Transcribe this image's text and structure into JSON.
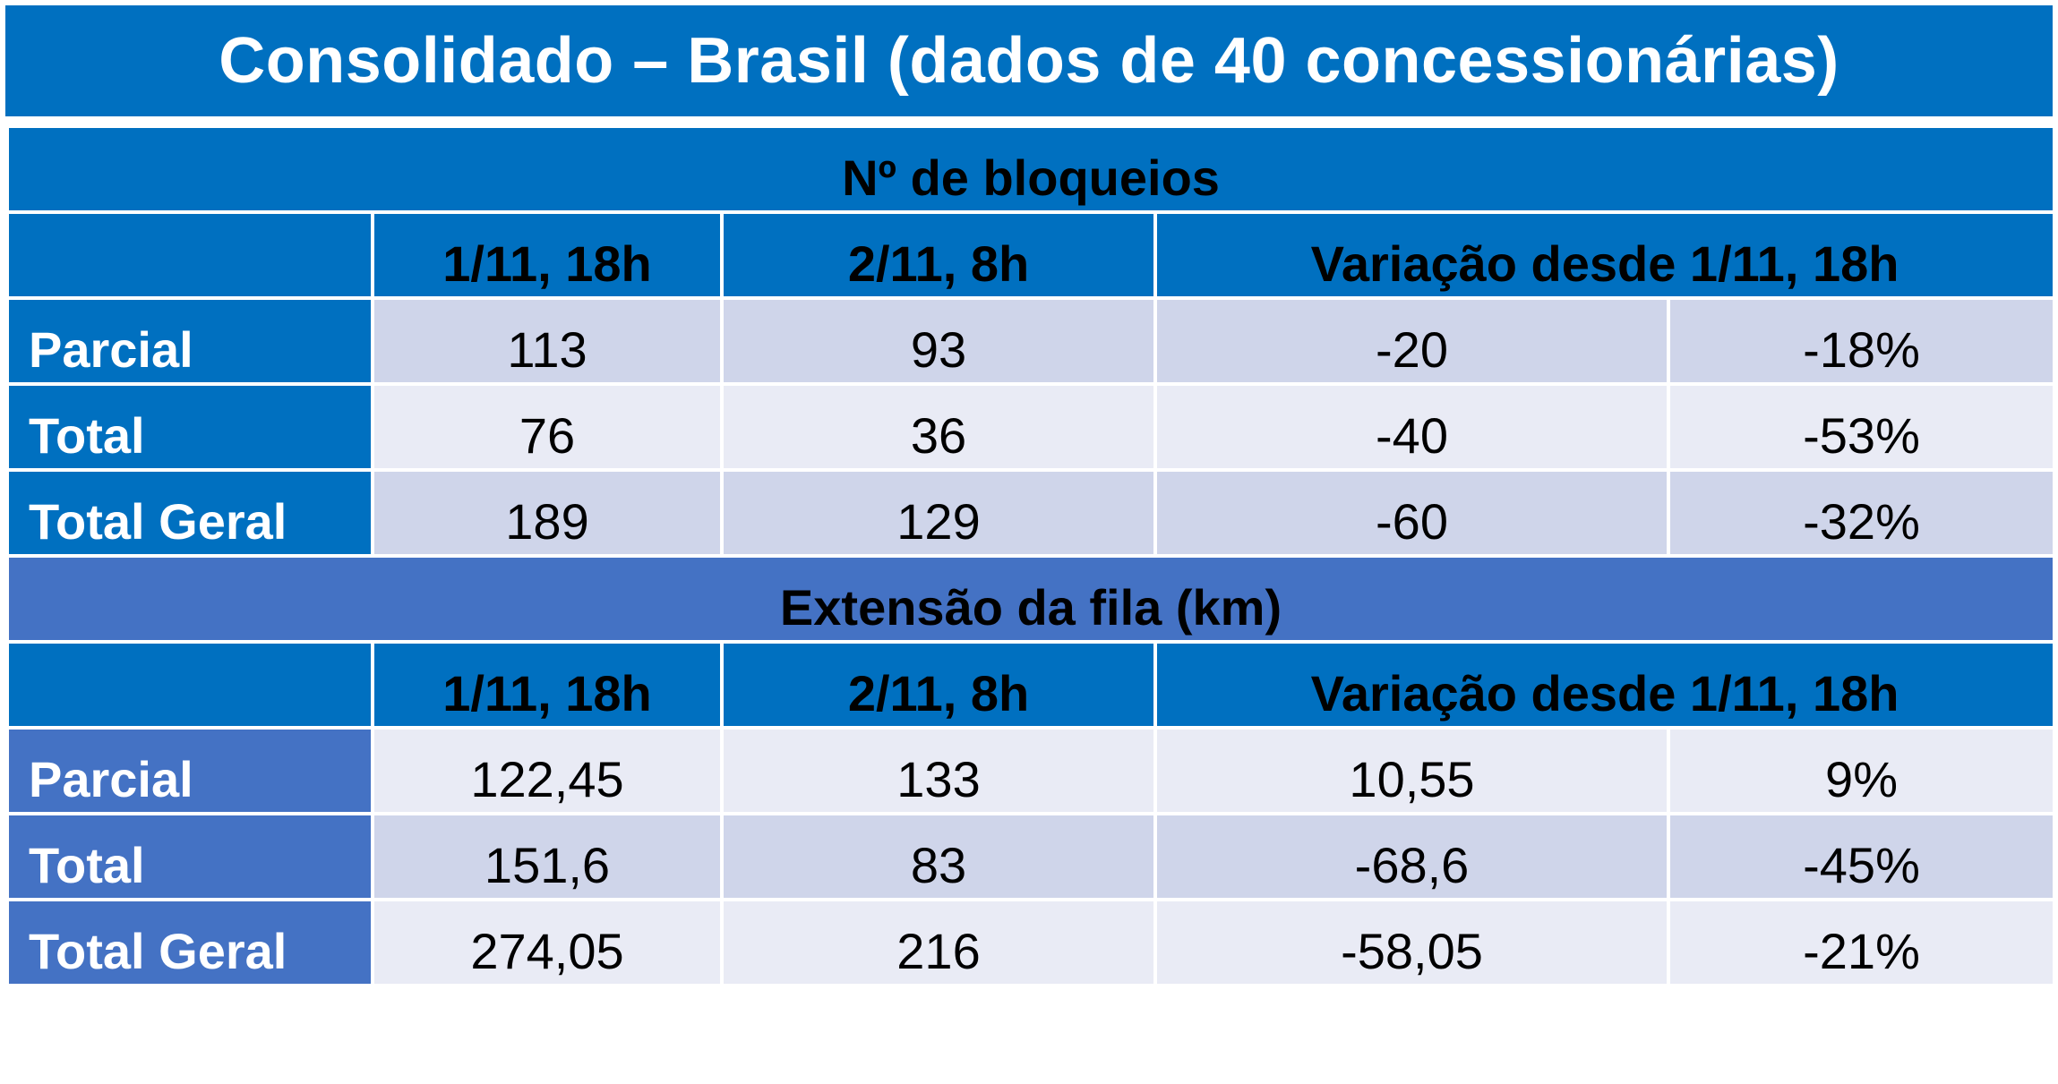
{
  "title": "Consolidado – Brasil (dados de 40 concessionárias)",
  "chart_data": {
    "type": "table",
    "sections": [
      {
        "heading": "Nº de bloqueios",
        "columns": [
          "",
          "1/11, 18h",
          "2/11, 8h",
          "Variação desde 1/11, 18h"
        ],
        "rows": [
          {
            "label": "Parcial",
            "values": [
              "113",
              "93",
              "-20",
              "-18%"
            ]
          },
          {
            "label": "Total",
            "values": [
              "76",
              "36",
              "-40",
              "-53%"
            ]
          },
          {
            "label": "Total Geral",
            "values": [
              "189",
              "129",
              "-60",
              "-32%"
            ]
          }
        ]
      },
      {
        "heading": "Extensão da fila (km)",
        "columns": [
          "",
          "1/11, 18h",
          "2/11, 8h",
          "Variação desde 1/11, 18h"
        ],
        "rows": [
          {
            "label": "Parcial",
            "values": [
              "122,45",
              "133",
              "10,55",
              "9%"
            ]
          },
          {
            "label": "Total",
            "values": [
              "151,6",
              "83",
              "-68,6",
              "-45%"
            ]
          },
          {
            "label": "Total Geral",
            "values": [
              "274,05",
              "216",
              "-58,05",
              "-21%"
            ]
          }
        ]
      }
    ]
  },
  "colors": {
    "header_blue": "#0070c0",
    "header_purple": "#4472c4",
    "row_shade_dark": "#cfd5ea",
    "row_shade_light": "#e9ebf5"
  }
}
